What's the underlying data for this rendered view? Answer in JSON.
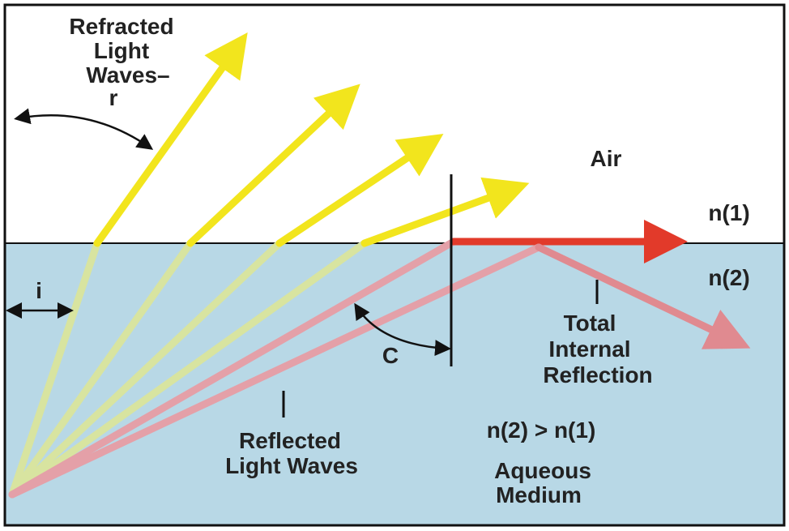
{
  "labels": {
    "refracted": [
      "Refracted",
      "Light",
      "Waves–",
      "r"
    ],
    "incidence": "i",
    "air": "Air",
    "n1": "n(1)",
    "n2": "n(2)",
    "critical": "C",
    "tir": [
      "Total",
      "Internal",
      "Reflection"
    ],
    "reflected": [
      "Reflected",
      "Light Waves"
    ],
    "inequality": "n(2) > n(1)",
    "medium": [
      "Aqueous",
      "Medium"
    ]
  }
}
